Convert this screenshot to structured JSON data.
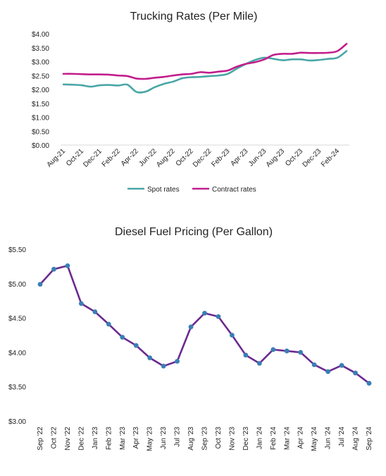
{
  "chart_data": [
    {
      "type": "line",
      "title": "Trucking Rates (Per Mile)",
      "xlabel": "",
      "ylabel": "",
      "ylim": [
        0,
        4
      ],
      "yticks": [
        "$0.00",
        "$0.50",
        "$1.00",
        "$1.50",
        "$2.00",
        "$2.50",
        "$3.00",
        "$3.50",
        "$4.00"
      ],
      "x": [
        "Aug-21",
        "Sep-21",
        "Oct-21",
        "Nov-21",
        "Dec-21",
        "Jan-22",
        "Feb-22",
        "Mar-22",
        "Apr-22",
        "May-22",
        "Jun-22",
        "Jul-22",
        "Aug-22",
        "Sep-22",
        "Oct-22",
        "Nov-22",
        "Dec-22",
        "Jan-23",
        "Feb-23",
        "Mar-23",
        "Apr-23",
        "May-23",
        "Jun-23",
        "Jul-23",
        "Aug-23",
        "Sep-23",
        "Oct-23",
        "Nov-23",
        "Dec-23",
        "Jan-24",
        "Feb-24",
        "Mar-24"
      ],
      "xtick_labels": [
        "Aug-21",
        "Oct-21",
        "Dec-21",
        "Feb-22",
        "Apr-22",
        "Jun-22",
        "Aug-22",
        "Oct-22",
        "Dec-22",
        "Feb-23",
        "Apr-23",
        "Jun-23",
        "Aug-23",
        "Oct-23",
        "Dec-23",
        "Feb-24"
      ],
      "legend_position": "bottom",
      "grid": false,
      "series": [
        {
          "name": "Spot rates",
          "color": "#4aa6a6",
          "values": [
            2.18,
            2.17,
            2.15,
            2.1,
            2.15,
            2.16,
            2.14,
            2.17,
            1.91,
            1.92,
            2.08,
            2.2,
            2.28,
            2.4,
            2.44,
            2.45,
            2.48,
            2.5,
            2.56,
            2.75,
            2.92,
            3.06,
            3.14,
            3.1,
            3.05,
            3.08,
            3.08,
            3.04,
            3.06,
            3.1,
            3.14,
            3.38
          ]
        },
        {
          "name": "Contract rates",
          "color": "#c21e8c",
          "values": [
            2.56,
            2.56,
            2.55,
            2.54,
            2.54,
            2.53,
            2.5,
            2.48,
            2.39,
            2.38,
            2.42,
            2.45,
            2.5,
            2.54,
            2.56,
            2.62,
            2.6,
            2.64,
            2.68,
            2.82,
            2.92,
            2.98,
            3.08,
            3.24,
            3.28,
            3.28,
            3.32,
            3.31,
            3.31,
            3.32,
            3.38,
            3.64
          ]
        }
      ]
    },
    {
      "type": "line",
      "title": "Diesel Fuel Pricing (Per Gallon)",
      "xlabel": "",
      "ylabel": "",
      "ylim": [
        3,
        5.5
      ],
      "yticks": [
        "$3.00",
        "$3.50",
        "$4.00",
        "$4.50",
        "$5.00",
        "$5.50"
      ],
      "categories": [
        "Sep '22",
        "Oct '22",
        "Nov '22",
        "Dec '22",
        "Jan '23",
        "Feb '23",
        "Mar '23",
        "Apr '23",
        "May '23",
        "Jun '23",
        "Jul '23",
        "Aug '23",
        "Sep '23",
        "Oct '23",
        "Nov '23",
        "Dec '23",
        "Jan '24",
        "Feb '24",
        "Mar '24",
        "Apr '24",
        "May '24",
        "Jun '24",
        "Jul '24",
        "Aug '24",
        "Sep '24"
      ],
      "grid": false,
      "series": [
        {
          "color": "#6b2a8f",
          "marker_color": "#3a7fb5",
          "values": [
            4.99,
            5.21,
            5.26,
            4.71,
            4.59,
            4.41,
            4.22,
            4.1,
            3.92,
            3.8,
            3.87,
            4.37,
            4.57,
            4.52,
            4.25,
            3.96,
            3.84,
            4.04,
            4.02,
            4.0,
            3.82,
            3.72,
            3.81,
            3.7,
            3.55
          ]
        }
      ]
    }
  ]
}
